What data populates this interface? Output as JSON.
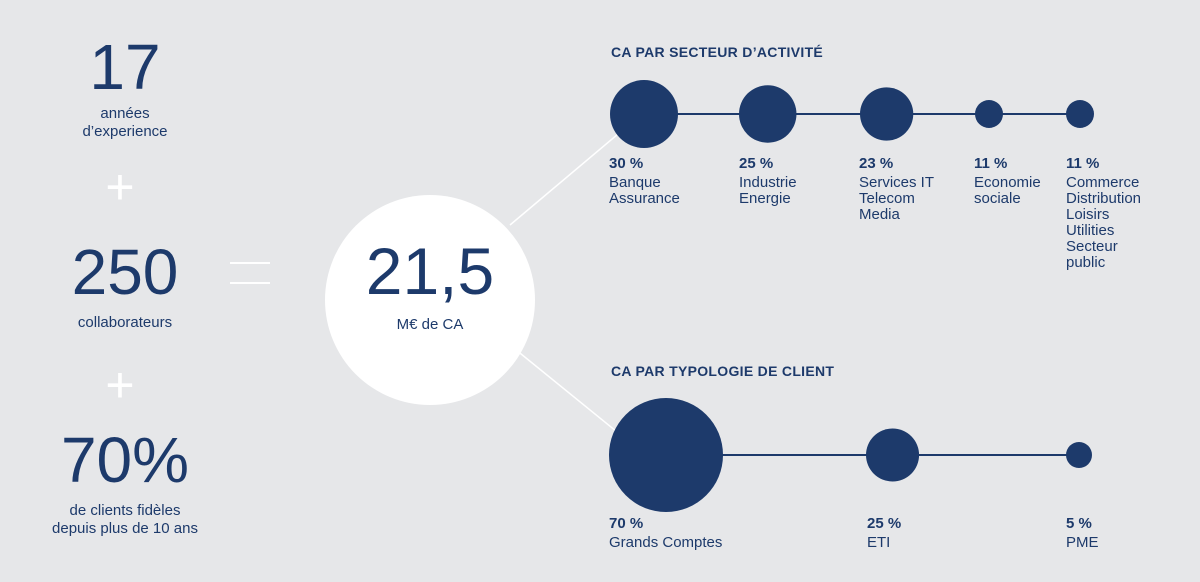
{
  "stats": [
    {
      "value": "17",
      "label": "années\nd’experience"
    },
    {
      "value": "250",
      "label": "collaborateurs"
    },
    {
      "value": "70%",
      "label": "de clients fidèles\ndepuis plus de 10 ans"
    }
  ],
  "operators": {
    "plus": "+",
    "equals": "="
  },
  "total": {
    "value": "21,5",
    "unit": "M€ de CA"
  },
  "sections": [
    {
      "title": "CA PAR SECTEUR D’ACTIVITÉ",
      "segments": [
        {
          "percent": 30,
          "percent_label": "30 %",
          "label": "Banque\nAssurance"
        },
        {
          "percent": 25,
          "percent_label": "25 %",
          "label": "Industrie\nEnergie"
        },
        {
          "percent": 23,
          "percent_label": "23 %",
          "label": "Services IT\nTelecom\nMedia"
        },
        {
          "percent": 11,
          "percent_label": "11 %",
          "label": "Economie\nsociale"
        },
        {
          "percent": 11,
          "percent_label": "11 %",
          "label": "Commerce\nDistribution\nLoisirs\nUtilities\nSecteur\npublic"
        }
      ]
    },
    {
      "title": "CA PAR TYPOLOGIE DE CLIENT",
      "segments": [
        {
          "percent": 70,
          "percent_label": "70 %",
          "label": "Grands Comptes"
        },
        {
          "percent": 25,
          "percent_label": "25 %",
          "label": "ETI"
        },
        {
          "percent": 5,
          "percent_label": "5 %",
          "label": "PME"
        }
      ]
    }
  ],
  "colors": {
    "accent": "#1d3a6b",
    "background": "#e6e7e9",
    "white": "#ffffff"
  }
}
